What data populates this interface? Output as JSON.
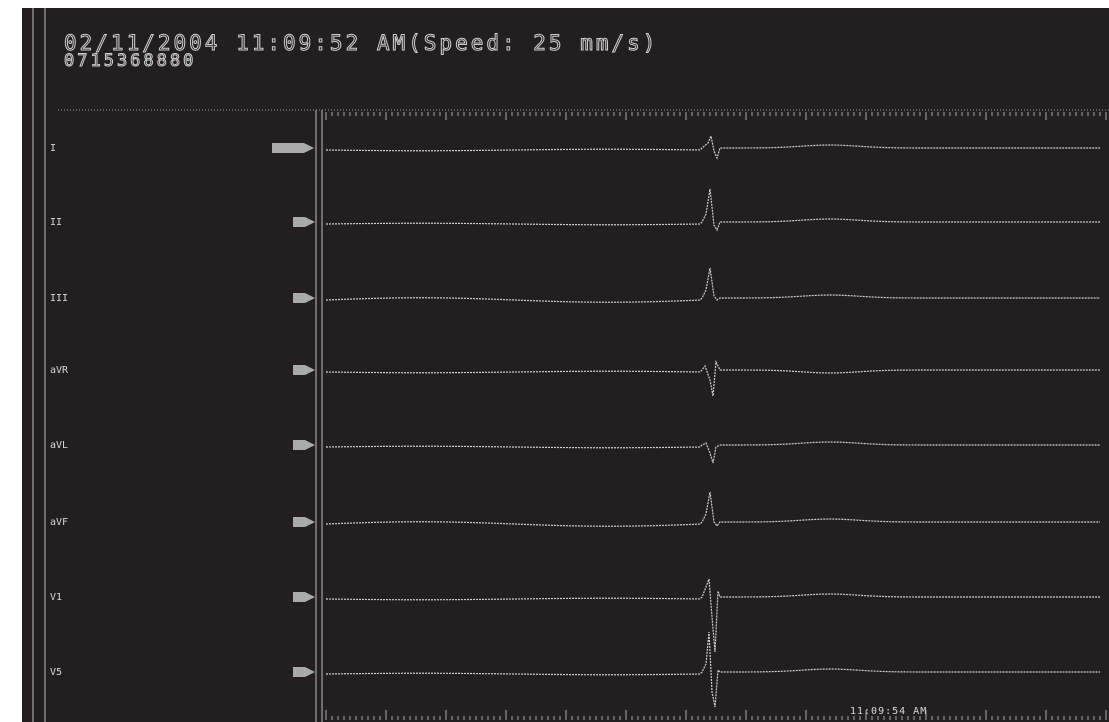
{
  "header": {
    "title": "02/11/2004 11:09:52 AM(Speed: 25 mm/s)",
    "patient_id": "0715368880"
  },
  "leads": [
    "I",
    "II",
    "III",
    "aVR",
    "aVL",
    "aVF",
    "V1",
    "V5"
  ],
  "footer": {
    "time": "11:09:54 AM"
  }
}
